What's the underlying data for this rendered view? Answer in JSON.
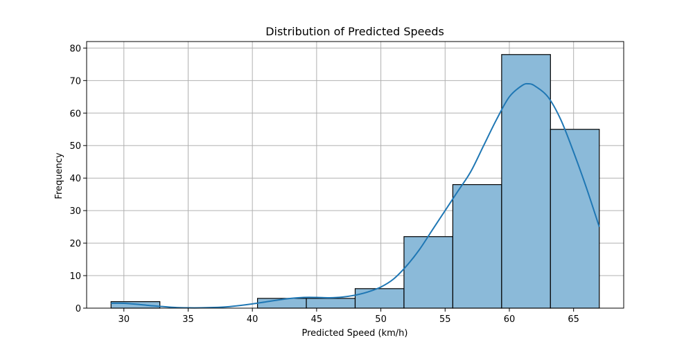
{
  "chart_data": {
    "type": "bar",
    "title": "Distribution of Predicted Speeds",
    "xlabel": "Predicted Speed (km/h)",
    "ylabel": "Frequency",
    "xlim": [
      27.1,
      68.9
    ],
    "ylim": [
      0,
      82
    ],
    "x_ticks": [
      30,
      35,
      40,
      45,
      50,
      55,
      60,
      65
    ],
    "y_ticks": [
      0,
      10,
      20,
      30,
      40,
      50,
      60,
      70,
      80
    ],
    "bin_edges": [
      29.0,
      32.8,
      36.6,
      40.4,
      44.2,
      48.0,
      51.8,
      55.6,
      59.4,
      63.2,
      67.0
    ],
    "values": [
      2,
      0,
      0,
      3,
      3,
      6,
      22,
      38,
      78,
      55
    ],
    "grid": true,
    "series": [
      {
        "type": "kde",
        "x": [
          29.0,
          30.0,
          31.0,
          32.0,
          33.0,
          34.0,
          35.0,
          36.0,
          37.0,
          38.0,
          39.0,
          40.0,
          41.0,
          42.0,
          43.0,
          44.0,
          45.0,
          46.0,
          47.0,
          48.0,
          49.0,
          50.0,
          51.0,
          52.0,
          53.0,
          54.0,
          55.0,
          56.0,
          57.0,
          58.0,
          59.0,
          60.0,
          61.0,
          61.5,
          62.0,
          63.0,
          64.0,
          65.0,
          66.0,
          67.0
        ],
        "y": [
          1.5,
          1.5,
          1.2,
          0.8,
          0.5,
          0.2,
          0.1,
          0.1,
          0.2,
          0.4,
          0.8,
          1.3,
          1.9,
          2.5,
          3.0,
          3.3,
          3.3,
          3.2,
          3.4,
          4.0,
          5.0,
          6.5,
          9.0,
          13.0,
          18.0,
          24.0,
          30.0,
          36.0,
          42.0,
          50.0,
          58.0,
          65.0,
          68.5,
          69.0,
          68.3,
          65.0,
          58.0,
          48.0,
          37.0,
          25.0
        ]
      }
    ],
    "colors": {
      "bar_fill": "#8bbad9",
      "bar_edge": "#000000",
      "kde_line": "#1f77b4",
      "grid": "#b0b0b0"
    }
  }
}
